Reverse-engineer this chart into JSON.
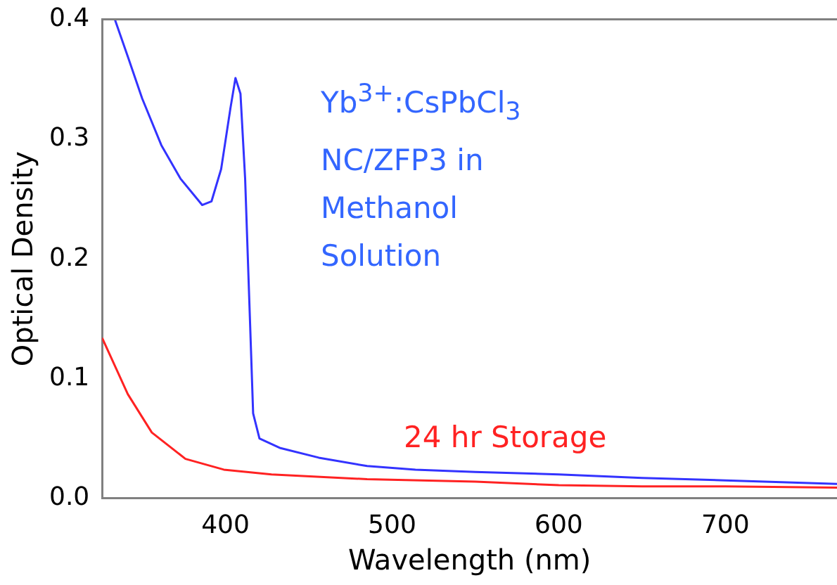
{
  "chart_data": {
    "type": "line",
    "xlabel": "Wavelength (nm)",
    "ylabel": "Optical Density",
    "xlim": [
      326,
      767
    ],
    "xticks": [
      400,
      500,
      600,
      700
    ],
    "ylim": [
      0,
      0.4
    ],
    "yticks": [
      {
        "value": 0,
        "label": "0.0"
      },
      0.1,
      0.2,
      0.3,
      0.4
    ],
    "grid": false,
    "legend": false,
    "marker": "none",
    "line_style": "solid",
    "series": [
      {
        "name": "Yb$^{3+}$:CsPbCl$_{3}$ NC/ZFP3 in Methanol Solution",
        "color": "#3333ff",
        "x": [
          333.6,
          341.4,
          350,
          361.5,
          373,
          386,
          391.6,
          397.4,
          403,
          406,
          409,
          411.8,
          414.7,
          416.6,
          420.4,
          433,
          456,
          485,
          514,
          550,
          600,
          650,
          700,
          767
        ],
        "values": [
          0.4,
          0.369,
          0.334,
          0.295,
          0.267,
          0.245,
          0.248,
          0.275,
          0.326,
          0.351,
          0.338,
          0.267,
          0.149,
          0.071,
          0.05,
          0.042,
          0.034,
          0.027,
          0.024,
          0.022,
          0.02,
          0.017,
          0.015,
          0.012
        ]
      },
      {
        "name": "24 hr Storage",
        "color": "#ff2222",
        "x": [
          326,
          341.4,
          355.8,
          376,
          399,
          427.6,
          485,
          550,
          600,
          650,
          700,
          767
        ],
        "values": [
          0.134,
          0.087,
          0.055,
          0.033,
          0.024,
          0.02,
          0.016,
          0.014,
          0.011,
          0.01,
          0.01,
          0.009
        ]
      }
    ]
  }
}
